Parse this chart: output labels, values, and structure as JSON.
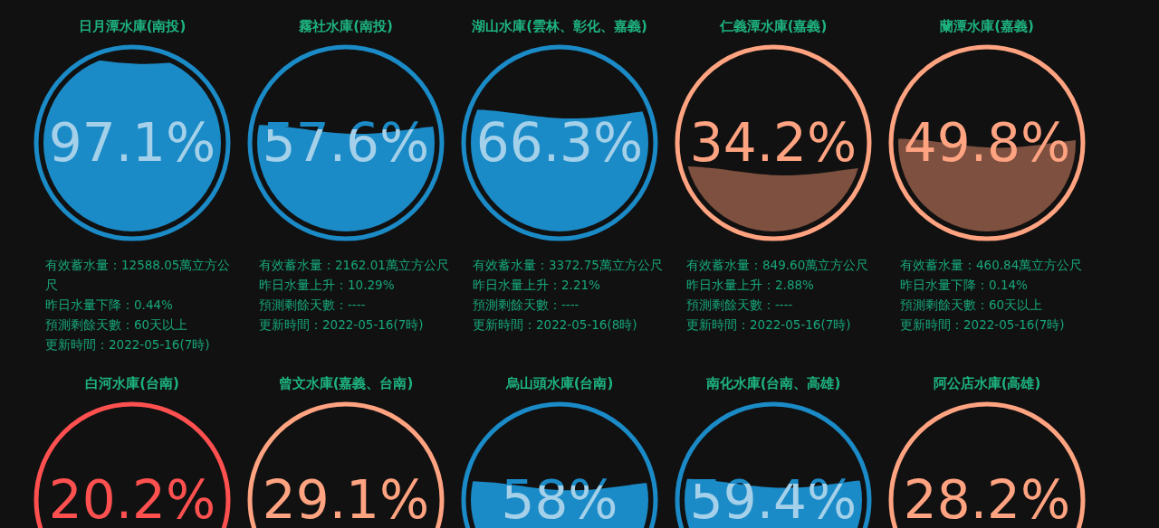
{
  "chart_data": [
    {
      "type": "other",
      "title": "日月潭水庫(南投)",
      "values": [
        97.1
      ],
      "value_labels": [
        "97.1%"
      ],
      "color": "#1b8bc8",
      "annotations": [
        "有效蓄水量：12588.05萬立方公尺",
        "昨日水量下降：0.44%",
        "預測剩餘天數：60天以上",
        "更新時間：2022-05-16(7時)"
      ]
    },
    {
      "type": "other",
      "title": "霧社水庫(南投)",
      "values": [
        57.6
      ],
      "value_labels": [
        "57.6%"
      ],
      "color": "#1b8bc8",
      "annotations": [
        "有效蓄水量：2162.01萬立方公尺",
        "昨日水量上升：10.29%",
        "預測剩餘天數：----",
        "更新時間：2022-05-16(7時)"
      ]
    },
    {
      "type": "other",
      "title": "湖山水庫(雲林、彰化、嘉義)",
      "values": [
        66.3
      ],
      "value_labels": [
        "66.3%"
      ],
      "color": "#1b8bc8",
      "annotations": [
        "有效蓄水量：3372.75萬立方公尺",
        "昨日水量上升：2.21%",
        "預測剩餘天數：----",
        "更新時間：2022-05-16(8時)"
      ]
    },
    {
      "type": "other",
      "title": "仁義潭水庫(嘉義)",
      "values": [
        34.2
      ],
      "value_labels": [
        "34.2%"
      ],
      "color": "#7e503f",
      "annotations": [
        "有效蓄水量：849.60萬立方公尺",
        "昨日水量上升：2.88%",
        "預測剩餘天數：----",
        "更新時間：2022-05-16(7時)"
      ]
    },
    {
      "type": "other",
      "title": "蘭潭水庫(嘉義)",
      "values": [
        49.8
      ],
      "value_labels": [
        "49.8%"
      ],
      "color": "#7e503f",
      "annotations": [
        "有效蓄水量：460.84萬立方公尺",
        "昨日水量下降：0.14%",
        "預測剩餘天數：60天以上",
        "更新時間：2022-05-16(7時)"
      ]
    },
    {
      "type": "other",
      "title": "白河水庫(台南)",
      "values": [
        20.2
      ],
      "value_labels": [
        "20.2%"
      ],
      "color": "#7d2727"
    },
    {
      "type": "other",
      "title": "曾文水庫(嘉義、台南)",
      "values": [
        29.1
      ],
      "value_labels": [
        "29.1%"
      ],
      "color": "#7e503f"
    },
    {
      "type": "other",
      "title": "烏山頭水庫(台南)",
      "values": [
        58
      ],
      "value_labels": [
        "58%"
      ],
      "color": "#1b8bc8"
    },
    {
      "type": "other",
      "title": "南化水庫(台南、高雄)",
      "values": [
        59.4
      ],
      "value_labels": [
        "59.4%"
      ],
      "color": "#1b8bc8"
    },
    {
      "type": "other",
      "title": "阿公店水庫(高雄)",
      "values": [
        28.2
      ],
      "value_labels": [
        "28.2%"
      ],
      "color": "#7e503f"
    }
  ]
}
